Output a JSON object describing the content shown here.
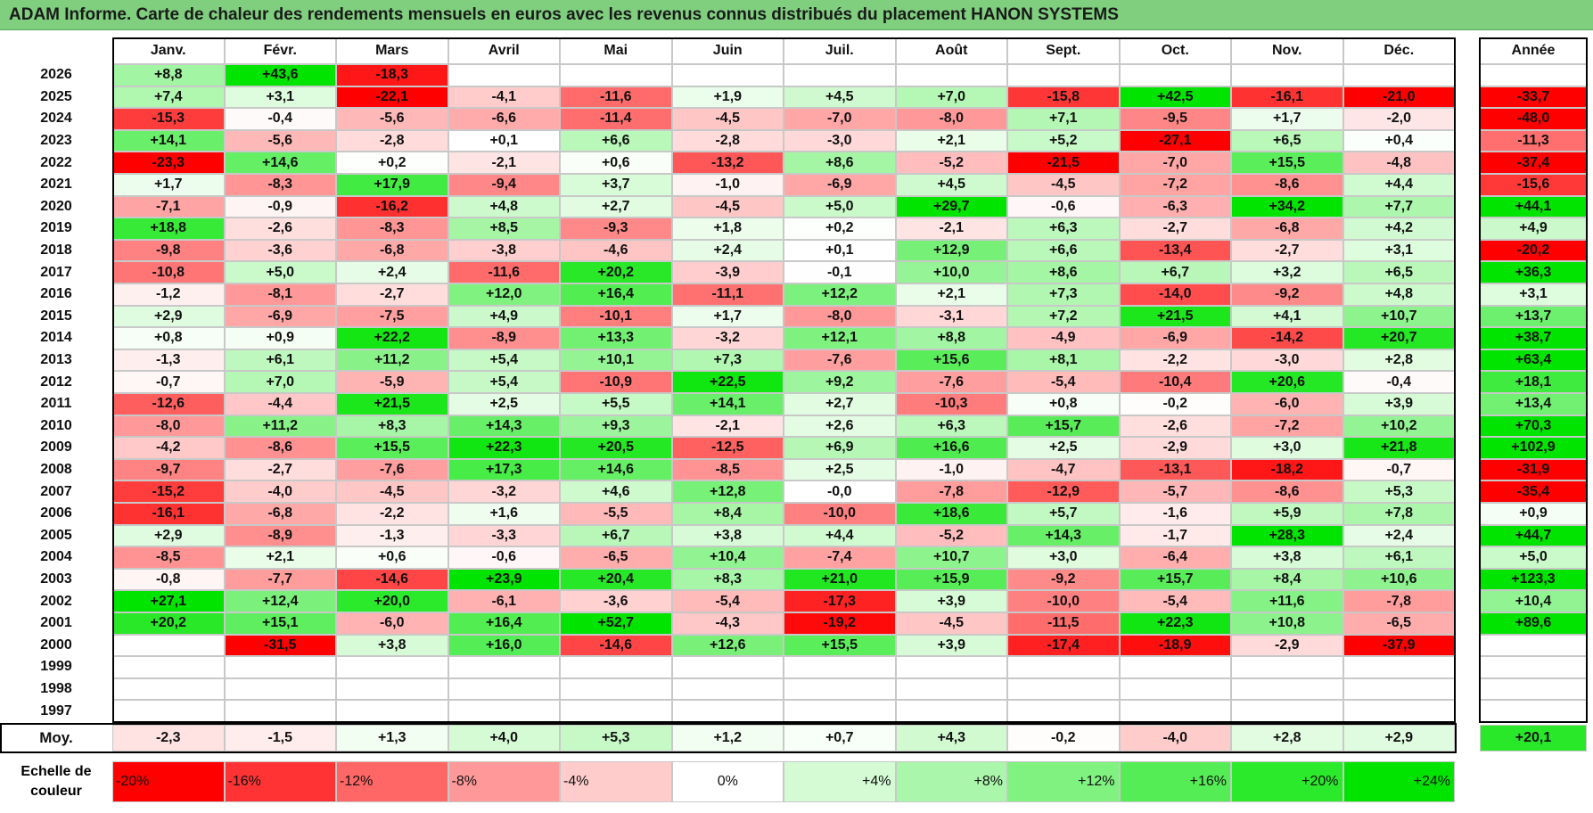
{
  "title": "ADAM Informe. Carte de chaleur des rendements mensuels en euros avec les revenus connus distribués du placement HANON SYSTEMS",
  "chart_data": {
    "type": "heatmap",
    "title": "ADAM Informe. Carte de chaleur des rendements mensuels en euros avec les revenus connus distribués du placement HANON SYSTEMS",
    "months": [
      "Janv.",
      "Févr.",
      "Mars",
      "Avril",
      "Mai",
      "Juin",
      "Juil.",
      "Août",
      "Sept.",
      "Oct.",
      "Nov.",
      "Déc."
    ],
    "annual_header": "Année",
    "rows": [
      {
        "year": "2026",
        "values": [
          "+8,8",
          "+43,6",
          "-18,3",
          "",
          "",
          "",
          "",
          "",
          "",
          "",
          "",
          ""
        ],
        "annual": ""
      },
      {
        "year": "2025",
        "values": [
          "+7,4",
          "+3,1",
          "-22,1",
          "-4,1",
          "-11,6",
          "+1,9",
          "+4,5",
          "+7,0",
          "-15,8",
          "+42,5",
          "-16,1",
          "-21,0"
        ],
        "annual": "-33,7"
      },
      {
        "year": "2024",
        "values": [
          "-15,3",
          "-0,4",
          "-5,6",
          "-6,6",
          "-11,4",
          "-4,5",
          "-7,0",
          "-8,0",
          "+7,1",
          "-9,5",
          "+1,7",
          "-2,0"
        ],
        "annual": "-48,0"
      },
      {
        "year": "2023",
        "values": [
          "+14,1",
          "-5,6",
          "-2,8",
          "+0,1",
          "+6,6",
          "-2,8",
          "-3,0",
          "+2,1",
          "+5,2",
          "-27,1",
          "+6,5",
          "+0,4"
        ],
        "annual": "-11,3"
      },
      {
        "year": "2022",
        "values": [
          "-23,3",
          "+14,6",
          "+0,2",
          "-2,1",
          "+0,6",
          "-13,2",
          "+8,6",
          "-5,2",
          "-21,5",
          "-7,0",
          "+15,5",
          "-4,8"
        ],
        "annual": "-37,4"
      },
      {
        "year": "2021",
        "values": [
          "+1,7",
          "-8,3",
          "+17,9",
          "-9,4",
          "+3,7",
          "-1,0",
          "-6,9",
          "+4,5",
          "-4,5",
          "-7,2",
          "-8,6",
          "+4,4"
        ],
        "annual": "-15,6"
      },
      {
        "year": "2020",
        "values": [
          "-7,1",
          "-0,9",
          "-16,2",
          "+4,8",
          "+2,7",
          "-4,5",
          "+5,0",
          "+29,7",
          "-0,6",
          "-6,3",
          "+34,2",
          "+7,7"
        ],
        "annual": "+44,1"
      },
      {
        "year": "2019",
        "values": [
          "+18,8",
          "-2,6",
          "-8,3",
          "+8,5",
          "-9,3",
          "+1,8",
          "+0,2",
          "-2,1",
          "+6,3",
          "-2,7",
          "-6,8",
          "+4,2"
        ],
        "annual": "+4,9"
      },
      {
        "year": "2018",
        "values": [
          "-9,8",
          "-3,6",
          "-6,8",
          "-3,8",
          "-4,6",
          "+2,4",
          "+0,1",
          "+12,9",
          "+6,6",
          "-13,4",
          "-2,7",
          "+3,1"
        ],
        "annual": "-20,2"
      },
      {
        "year": "2017",
        "values": [
          "-10,8",
          "+5,0",
          "+2,4",
          "-11,6",
          "+20,2",
          "-3,9",
          "-0,1",
          "+10,0",
          "+8,6",
          "+6,7",
          "+3,2",
          "+6,5"
        ],
        "annual": "+36,3"
      },
      {
        "year": "2016",
        "values": [
          "-1,2",
          "-8,1",
          "-2,7",
          "+12,0",
          "+16,4",
          "-11,1",
          "+12,2",
          "+2,1",
          "+7,3",
          "-14,0",
          "-9,2",
          "+4,8"
        ],
        "annual": "+3,1"
      },
      {
        "year": "2015",
        "values": [
          "+2,9",
          "-6,9",
          "-7,5",
          "+4,9",
          "-10,1",
          "+1,7",
          "-8,0",
          "-3,1",
          "+7,2",
          "+21,5",
          "+4,1",
          "+10,7"
        ],
        "annual": "+13,7"
      },
      {
        "year": "2014",
        "values": [
          "+0,8",
          "+0,9",
          "+22,2",
          "-8,9",
          "+13,3",
          "-3,2",
          "+12,1",
          "+8,8",
          "-4,9",
          "-6,9",
          "-14,2",
          "+20,7"
        ],
        "annual": "+38,7"
      },
      {
        "year": "2013",
        "values": [
          "-1,3",
          "+6,1",
          "+11,2",
          "+5,4",
          "+10,1",
          "+7,3",
          "-7,6",
          "+15,6",
          "+8,1",
          "-2,2",
          "-3,0",
          "+2,8"
        ],
        "annual": "+63,4"
      },
      {
        "year": "2012",
        "values": [
          "-0,7",
          "+7,0",
          "-5,9",
          "+5,4",
          "-10,9",
          "+22,5",
          "+9,2",
          "-7,6",
          "-5,4",
          "-10,4",
          "+20,6",
          "-0,4"
        ],
        "annual": "+18,1"
      },
      {
        "year": "2011",
        "values": [
          "-12,6",
          "-4,4",
          "+21,5",
          "+2,5",
          "+5,5",
          "+14,1",
          "+2,7",
          "-10,3",
          "+0,8",
          "-0,2",
          "-6,0",
          "+3,9"
        ],
        "annual": "+13,4"
      },
      {
        "year": "2010",
        "values": [
          "-8,0",
          "+11,2",
          "+8,3",
          "+14,3",
          "+9,3",
          "-2,1",
          "+2,6",
          "+6,3",
          "+15,7",
          "-2,6",
          "-7,2",
          "+10,2"
        ],
        "annual": "+70,3"
      },
      {
        "year": "2009",
        "values": [
          "-4,2",
          "-8,6",
          "+15,5",
          "+22,3",
          "+20,5",
          "-12,5",
          "+6,9",
          "+16,6",
          "+2,5",
          "-2,9",
          "+3,0",
          "+21,8"
        ],
        "annual": "+102,9"
      },
      {
        "year": "2008",
        "values": [
          "-9,7",
          "-2,7",
          "-7,6",
          "+17,3",
          "+14,6",
          "-8,5",
          "+2,5",
          "-1,0",
          "-4,7",
          "-13,1",
          "-18,2",
          "-0,7"
        ],
        "annual": "-31,9"
      },
      {
        "year": "2007",
        "values": [
          "-15,2",
          "-4,0",
          "-4,5",
          "-3,2",
          "+4,6",
          "+12,8",
          "-0,0",
          "-7,8",
          "-12,9",
          "-5,7",
          "-8,6",
          "+5,3"
        ],
        "annual": "-35,4"
      },
      {
        "year": "2006",
        "values": [
          "-16,1",
          "-6,8",
          "-2,2",
          "+1,6",
          "-5,5",
          "+8,4",
          "-10,0",
          "+18,6",
          "+5,7",
          "-1,6",
          "+5,9",
          "+7,8"
        ],
        "annual": "+0,9"
      },
      {
        "year": "2005",
        "values": [
          "+2,9",
          "-8,9",
          "-1,3",
          "-3,3",
          "+6,7",
          "+3,8",
          "+4,4",
          "-5,2",
          "+14,3",
          "-1,7",
          "+28,3",
          "+2,4"
        ],
        "annual": "+44,7"
      },
      {
        "year": "2004",
        "values": [
          "-8,5",
          "+2,1",
          "+0,6",
          "-0,6",
          "-6,5",
          "+10,4",
          "-7,4",
          "+10,7",
          "+3,0",
          "-6,4",
          "+3,8",
          "+6,1"
        ],
        "annual": "+5,0"
      },
      {
        "year": "2003",
        "values": [
          "-0,8",
          "-7,7",
          "-14,6",
          "+23,9",
          "+20,4",
          "+8,3",
          "+21,0",
          "+15,9",
          "-9,2",
          "+15,7",
          "+8,4",
          "+10,6"
        ],
        "annual": "+123,3"
      },
      {
        "year": "2002",
        "values": [
          "+27,1",
          "+12,4",
          "+20,0",
          "-6,1",
          "-3,6",
          "-5,4",
          "-17,3",
          "+3,9",
          "-10,0",
          "-5,4",
          "+11,6",
          "-7,8"
        ],
        "annual": "+10,4"
      },
      {
        "year": "2001",
        "values": [
          "+20,2",
          "+15,1",
          "-6,0",
          "+16,4",
          "+52,7",
          "-4,3",
          "-19,2",
          "-4,5",
          "-11,5",
          "+22,3",
          "+10,8",
          "-6,5"
        ],
        "annual": "+89,6"
      },
      {
        "year": "2000",
        "values": [
          "",
          "-31,5",
          "+3,8",
          "+16,0",
          "-14,6",
          "+12,6",
          "+15,5",
          "+3,9",
          "-17,4",
          "-18,9",
          "-2,9",
          "-37,9"
        ],
        "annual": ""
      },
      {
        "year": "1999",
        "values": [
          "",
          "",
          "",
          "",
          "",
          "",
          "",
          "",
          "",
          "",
          "",
          ""
        ],
        "annual": ""
      },
      {
        "year": "1998",
        "values": [
          "",
          "",
          "",
          "",
          "",
          "",
          "",
          "",
          "",
          "",
          "",
          ""
        ],
        "annual": ""
      },
      {
        "year": "1997",
        "values": [
          "",
          "",
          "",
          "",
          "",
          "",
          "",
          "",
          "",
          "",
          "",
          ""
        ],
        "annual": ""
      }
    ],
    "average": {
      "label": "Moy.",
      "values": [
        "-2,3",
        "-1,5",
        "+1,3",
        "+4,0",
        "+5,3",
        "+1,2",
        "+0,7",
        "+4,3",
        "-0,2",
        "-4,0",
        "+2,8",
        "+2,9"
      ],
      "annual": "+20,1"
    },
    "scale": {
      "label_line1": "Echelle de",
      "label_line2": "couleur",
      "steps": [
        "-20%",
        "-16%",
        "-12%",
        "-8%",
        "-4%",
        "0%",
        "+4%",
        "+8%",
        "+12%",
        "+16%",
        "+20%",
        "+24%"
      ]
    },
    "colors": {
      "neg_strong": "#ff0000",
      "neutral": "#ffffff",
      "pos_strong": "#00e000",
      "title_bar": "#7fcf7f"
    }
  }
}
